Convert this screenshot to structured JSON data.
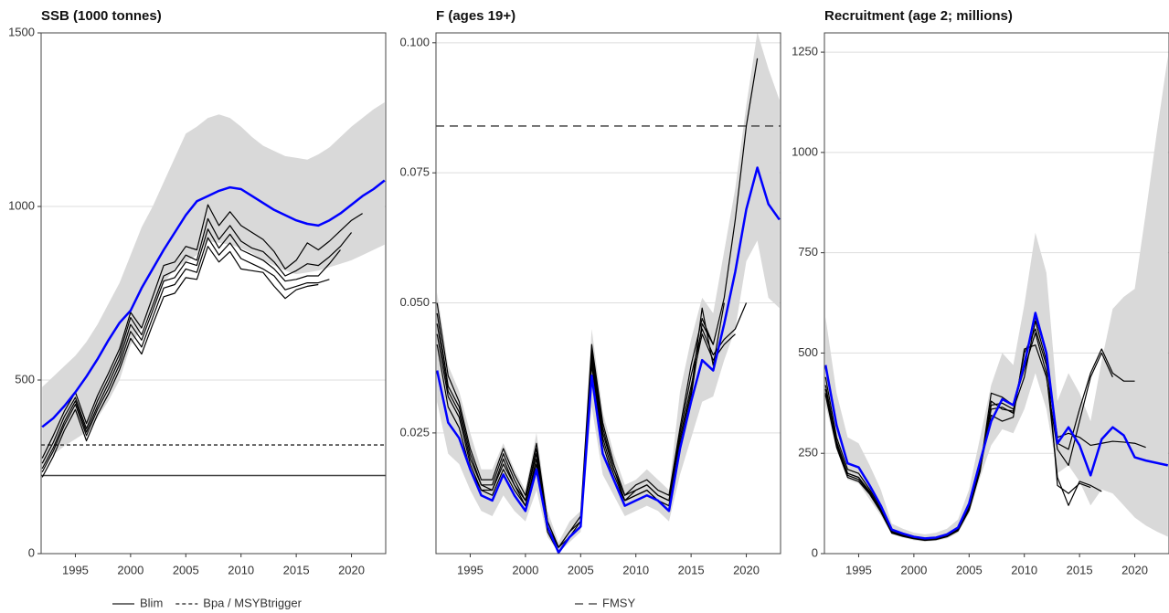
{
  "chart_data": [
    {
      "type": "line",
      "title": "SSB (1000 tonnes)",
      "x": [
        1992,
        1993,
        1994,
        1995,
        1996,
        1997,
        1998,
        1999,
        2000,
        2001,
        2002,
        2003,
        2004,
        2005,
        2006,
        2007,
        2008,
        2009,
        2010,
        2011,
        2012,
        2013,
        2014,
        2015,
        2016,
        2017,
        2018,
        2019,
        2020,
        2021,
        2022,
        2023
      ],
      "xlim": [
        1991.9,
        2023.1
      ],
      "xticks": [
        1995,
        2000,
        2005,
        2010,
        2015,
        2020
      ],
      "ylim": [
        0,
        1500
      ],
      "yticks": [
        0,
        500,
        1000,
        1500
      ],
      "grid": true,
      "band": {
        "color": "#d9d9d9",
        "lower": [
          250,
          285,
          310,
          330,
          350,
          390,
          440,
          500,
          600,
          650,
          710,
          780,
          820,
          840,
          860,
          900,
          895,
          890,
          880,
          865,
          845,
          830,
          815,
          805,
          810,
          815,
          825,
          835,
          845,
          860,
          875,
          890
        ],
        "upper": [
          480,
          510,
          540,
          570,
          610,
          660,
          720,
          780,
          860,
          940,
          1000,
          1070,
          1140,
          1210,
          1230,
          1255,
          1265,
          1255,
          1230,
          1200,
          1175,
          1160,
          1145,
          1140,
          1135,
          1150,
          1170,
          1200,
          1230,
          1255,
          1280,
          1300
        ]
      },
      "series": [
        {
          "color": "#0000ff",
          "width": 2.5,
          "values": [
            365,
            390,
            425,
            465,
            510,
            560,
            615,
            665,
            700,
            765,
            820,
            875,
            925,
            975,
            1015,
            1030,
            1045,
            1055,
            1050,
            1030,
            1010,
            990,
            975,
            960,
            950,
            945,
            960,
            980,
            1005,
            1030,
            1050,
            1075
          ]
        },
        {
          "color": "#000000",
          "width": 1.2,
          "values": [
            275,
            340,
            410,
            465,
            375,
            455,
            520,
            590,
            695,
            650,
            740,
            830,
            840,
            885,
            875,
            1005,
            945,
            985,
            945,
            925,
            905,
            870,
            820,
            845,
            895,
            875,
            900,
            930,
            960,
            980,
            null,
            null
          ]
        },
        {
          "color": "#000000",
          "width": 1.2,
          "values": [
            260,
            320,
            395,
            450,
            360,
            440,
            505,
            575,
            680,
            630,
            715,
            800,
            815,
            860,
            845,
            965,
            905,
            945,
            900,
            880,
            870,
            840,
            800,
            815,
            835,
            830,
            855,
            885,
            925,
            null,
            null,
            null
          ]
        },
        {
          "color": "#000000",
          "width": 1.2,
          "values": [
            245,
            305,
            380,
            440,
            350,
            425,
            490,
            560,
            660,
            615,
            700,
            785,
            795,
            840,
            830,
            935,
            880,
            920,
            875,
            860,
            845,
            820,
            785,
            790,
            800,
            800,
            835,
            875,
            null,
            null,
            null,
            null
          ]
        },
        {
          "color": "#000000",
          "width": 1.2,
          "values": [
            235,
            295,
            370,
            430,
            340,
            415,
            475,
            545,
            640,
            595,
            680,
            765,
            775,
            820,
            810,
            910,
            860,
            895,
            850,
            835,
            820,
            800,
            760,
            770,
            780,
            780,
            790,
            null,
            null,
            null,
            null,
            null
          ]
        },
        {
          "color": "#000000",
          "width": 1.2,
          "values": [
            220,
            280,
            355,
            415,
            325,
            400,
            460,
            530,
            620,
            575,
            660,
            740,
            750,
            795,
            790,
            885,
            840,
            870,
            820,
            815,
            810,
            770,
            735,
            760,
            770,
            775,
            null,
            null,
            null,
            null,
            null,
            null
          ]
        }
      ],
      "reference_lines": [
        {
          "label": "Blim",
          "value": 225,
          "color": "#444444",
          "dash": "solid"
        },
        {
          "label": "Bpa / MSYBtrigger",
          "value": 313,
          "color": "#444444",
          "dash": "dotted"
        }
      ],
      "legend": "bottom"
    },
    {
      "type": "line",
      "title": "F (ages 19+)",
      "x": [
        1992,
        1993,
        1994,
        1995,
        1996,
        1997,
        1998,
        1999,
        2000,
        2001,
        2002,
        2003,
        2004,
        2005,
        2006,
        2007,
        2008,
        2009,
        2010,
        2011,
        2012,
        2013,
        2014,
        2015,
        2016,
        2017,
        2018,
        2019,
        2020,
        2021,
        2022,
        2023
      ],
      "xlim": [
        1991.9,
        2023.1
      ],
      "xticks": [
        1995,
        2000,
        2005,
        2010,
        2015,
        2020
      ],
      "ylim": [
        0.0018,
        0.1019
      ],
      "yticks": [
        0.025,
        {
          "value": 0.05,
          "label": "0.050"
        },
        0.075,
        {
          "value": 0.1,
          "label": "0.100"
        }
      ],
      "grid": true,
      "band": {
        "color": "#d9d9d9",
        "lower": [
          0.031,
          0.021,
          0.019,
          0.014,
          0.01,
          0.009,
          0.013,
          0.01,
          0.008,
          0.014,
          0.005,
          0.002,
          0.004,
          0.006,
          0.03,
          0.017,
          0.013,
          0.009,
          0.01,
          0.011,
          0.01,
          0.008,
          0.017,
          0.024,
          0.031,
          0.032,
          0.039,
          0.045,
          0.058,
          0.062,
          0.051,
          0.049
        ],
        "upper": [
          0.052,
          0.038,
          0.033,
          0.025,
          0.018,
          0.018,
          0.023,
          0.018,
          0.014,
          0.025,
          0.01,
          0.004,
          0.008,
          0.01,
          0.045,
          0.029,
          0.021,
          0.015,
          0.016,
          0.018,
          0.016,
          0.014,
          0.033,
          0.043,
          0.051,
          0.048,
          0.06,
          0.072,
          0.088,
          0.102,
          0.095,
          0.089
        ]
      },
      "series": [
        {
          "color": "#0000ff",
          "width": 2.5,
          "values": [
            0.037,
            0.027,
            0.024,
            0.018,
            0.013,
            0.012,
            0.017,
            0.013,
            0.01,
            0.018,
            0.007,
            0.002,
            0.005,
            0.007,
            0.036,
            0.021,
            0.016,
            0.011,
            0.012,
            0.013,
            0.012,
            0.01,
            0.022,
            0.031,
            0.039,
            0.037,
            0.046,
            0.056,
            0.068,
            0.076,
            0.069,
            0.066
          ]
        },
        {
          "color": "#000000",
          "width": 1.2,
          "values": [
            0.05,
            0.036,
            0.031,
            0.022,
            0.016,
            0.016,
            0.022,
            0.017,
            0.013,
            0.023,
            0.008,
            0.003,
            0.006,
            0.009,
            0.042,
            0.027,
            0.019,
            0.013,
            0.015,
            0.016,
            0.014,
            0.013,
            0.026,
            0.038,
            0.047,
            0.042,
            0.051,
            0.066,
            0.084,
            0.097,
            null,
            null
          ]
        },
        {
          "color": "#000000",
          "width": 1.2,
          "values": [
            0.048,
            0.034,
            0.03,
            0.021,
            0.015,
            0.015,
            0.021,
            0.016,
            0.012,
            0.022,
            0.008,
            0.003,
            0.006,
            0.008,
            0.041,
            0.026,
            0.018,
            0.013,
            0.014,
            0.015,
            0.013,
            0.012,
            0.025,
            0.036,
            0.045,
            0.04,
            0.043,
            0.045,
            0.05,
            null,
            null,
            null
          ]
        },
        {
          "color": "#000000",
          "width": 1.2,
          "values": [
            0.046,
            0.033,
            0.029,
            0.02,
            0.015,
            0.014,
            0.02,
            0.015,
            0.012,
            0.021,
            0.007,
            0.003,
            0.005,
            0.008,
            0.04,
            0.025,
            0.018,
            0.012,
            0.014,
            0.015,
            0.013,
            0.012,
            0.024,
            0.034,
            0.044,
            0.039,
            0.042,
            0.044,
            null,
            null,
            null,
            null
          ]
        },
        {
          "color": "#000000",
          "width": 1.2,
          "values": [
            0.044,
            0.032,
            0.028,
            0.019,
            0.014,
            0.014,
            0.019,
            0.015,
            0.011,
            0.02,
            0.007,
            0.002,
            0.005,
            0.007,
            0.039,
            0.024,
            0.017,
            0.012,
            0.013,
            0.014,
            0.012,
            0.011,
            0.023,
            0.033,
            0.049,
            0.038,
            0.05,
            null,
            null,
            null,
            null,
            null
          ]
        },
        {
          "color": "#000000",
          "width": 1.2,
          "values": [
            0.042,
            0.03,
            0.026,
            0.018,
            0.014,
            0.013,
            0.018,
            0.014,
            0.011,
            0.019,
            0.006,
            0.002,
            0.005,
            0.007,
            0.038,
            0.023,
            0.016,
            0.012,
            0.013,
            0.014,
            0.012,
            0.011,
            0.022,
            0.032,
            0.046,
            0.042,
            null,
            null,
            null,
            null,
            null,
            null
          ]
        }
      ],
      "reference_lines": [
        {
          "label": "FMSY",
          "value": 0.084,
          "color": "#555555",
          "dash": "dashed"
        }
      ],
      "legend": "bottom"
    },
    {
      "type": "line",
      "title": "Recruitment (age 2; millions)",
      "x": [
        1992,
        1993,
        1994,
        1995,
        1996,
        1997,
        1998,
        1999,
        2000,
        2001,
        2002,
        2003,
        2004,
        2005,
        2006,
        2007,
        2008,
        2009,
        2010,
        2011,
        2012,
        2013,
        2014,
        2015,
        2016,
        2017,
        2018,
        2019,
        2020,
        2021,
        2022,
        2023
      ],
      "xlim": [
        1991.9,
        2023.1
      ],
      "xticks": [
        1995,
        2000,
        2005,
        2010,
        2015,
        2020
      ],
      "ylim": [
        0,
        1298
      ],
      "yticks": [
        0,
        250,
        500,
        750,
        1000,
        1250
      ],
      "grid": true,
      "band": {
        "color": "#d9d9d9",
        "lower": [
          370,
          260,
          185,
          175,
          135,
          95,
          48,
          40,
          33,
          30,
          32,
          38,
          52,
          100,
          190,
          270,
          310,
          300,
          360,
          450,
          360,
          200,
          220,
          180,
          120,
          160,
          150,
          120,
          90,
          70,
          55,
          42
        ],
        "upper": [
          590,
          400,
          290,
          275,
          220,
          160,
          75,
          62,
          52,
          48,
          52,
          62,
          85,
          160,
          290,
          420,
          500,
          470,
          620,
          800,
          700,
          380,
          450,
          400,
          330,
          480,
          610,
          640,
          660,
          850,
          1050,
          1240
        ]
      },
      "series": [
        {
          "color": "#0000ff",
          "width": 2.5,
          "values": [
            470,
            320,
            225,
            215,
            170,
            120,
            60,
            50,
            42,
            38,
            40,
            48,
            65,
            125,
            230,
            330,
            385,
            370,
            470,
            600,
            500,
            275,
            315,
            270,
            195,
            285,
            315,
            295,
            240,
            232,
            226,
            220
          ]
        },
        {
          "color": "#000000",
          "width": 1.2,
          "values": [
            440,
            290,
            210,
            200,
            160,
            115,
            58,
            48,
            40,
            36,
            38,
            45,
            62,
            120,
            220,
            370,
            375,
            360,
            440,
            580,
            480,
            275,
            260,
            360,
            450,
            510,
            450,
            430,
            430,
            null,
            null,
            null
          ]
        },
        {
          "color": "#000000",
          "width": 1.2,
          "values": [
            420,
            280,
            200,
            190,
            155,
            110,
            55,
            46,
            39,
            35,
            37,
            44,
            60,
            115,
            215,
            360,
            365,
            350,
            500,
            560,
            470,
            290,
            300,
            290,
            270,
            275,
            280,
            278,
            275,
            265,
            null,
            null
          ]
        },
        {
          "color": "#000000",
          "width": 1.2,
          "values": [
            410,
            275,
            200,
            190,
            152,
            108,
            54,
            45,
            39,
            35,
            37,
            44,
            59,
            112,
            212,
            345,
            330,
            340,
            510,
            520,
            440,
            260,
            220,
            330,
            440,
            500,
            440,
            null,
            null,
            null,
            null,
            null
          ]
        },
        {
          "color": "#000000",
          "width": 1.2,
          "values": [
            400,
            270,
            195,
            185,
            150,
            105,
            52,
            44,
            38,
            34,
            36,
            43,
            58,
            110,
            210,
            400,
            390,
            370,
            460,
            550,
            450,
            190,
            120,
            180,
            170,
            155,
            null,
            null,
            null,
            null,
            null,
            null
          ]
        },
        {
          "color": "#000000",
          "width": 1.2,
          "values": [
            395,
            265,
            190,
            180,
            148,
            104,
            51,
            43,
            37,
            33,
            35,
            42,
            57,
            108,
            205,
            380,
            360,
            355,
            480,
            590,
            500,
            170,
            150,
            175,
            165,
            null,
            null,
            null,
            null,
            null,
            null,
            null
          ]
        }
      ],
      "reference_lines": [],
      "legend": "bottom"
    }
  ]
}
